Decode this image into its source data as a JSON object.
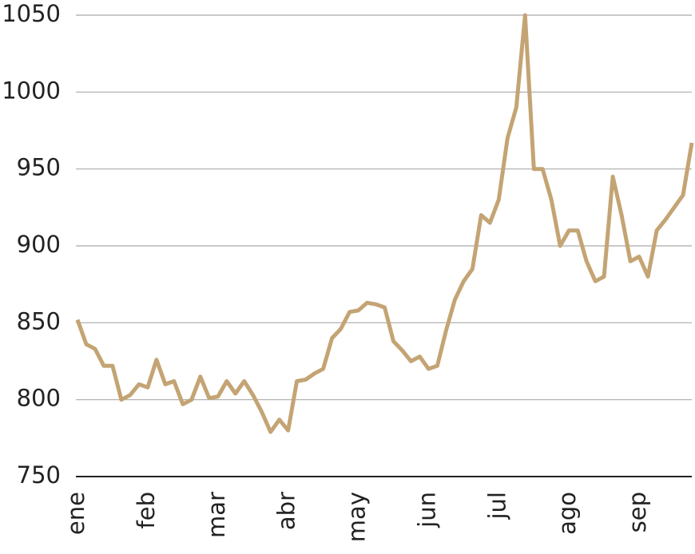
{
  "chart_data": {
    "type": "line",
    "categories": [
      "ene",
      null,
      null,
      null,
      null,
      null,
      null,
      null,
      "feb",
      null,
      null,
      null,
      null,
      null,
      null,
      null,
      "mar",
      null,
      null,
      null,
      null,
      null,
      null,
      null,
      "abr",
      null,
      null,
      null,
      null,
      null,
      null,
      null,
      "may",
      null,
      null,
      null,
      null,
      null,
      null,
      null,
      "jun",
      null,
      null,
      null,
      null,
      null,
      null,
      null,
      "jul",
      null,
      null,
      null,
      null,
      null,
      null,
      null,
      "ago",
      null,
      null,
      null,
      null,
      null,
      null,
      null,
      "sep",
      null,
      null,
      null,
      null,
      null,
      null
    ],
    "series": [
      {
        "color": "#c4a474",
        "values": [
          852,
          836,
          833,
          822,
          822,
          800,
          803,
          810,
          808,
          826,
          810,
          812,
          797,
          800,
          815,
          801,
          802,
          812,
          804,
          812,
          803,
          792,
          779,
          787,
          780,
          812,
          813,
          817,
          820,
          840,
          846,
          857,
          858,
          863,
          862,
          860,
          838,
          832,
          825,
          828,
          820,
          822,
          845,
          865,
          877,
          885,
          920,
          915,
          930,
          970,
          990,
          1050,
          950,
          950,
          930,
          900,
          910,
          910,
          890,
          877,
          880,
          945,
          920,
          890,
          893,
          880,
          910,
          917,
          925,
          933,
          967
        ]
      }
    ],
    "ylim": [
      750,
      1050
    ],
    "yticks": [
      750,
      800,
      850,
      900,
      950,
      1000,
      1050
    ],
    "grid": true
  }
}
